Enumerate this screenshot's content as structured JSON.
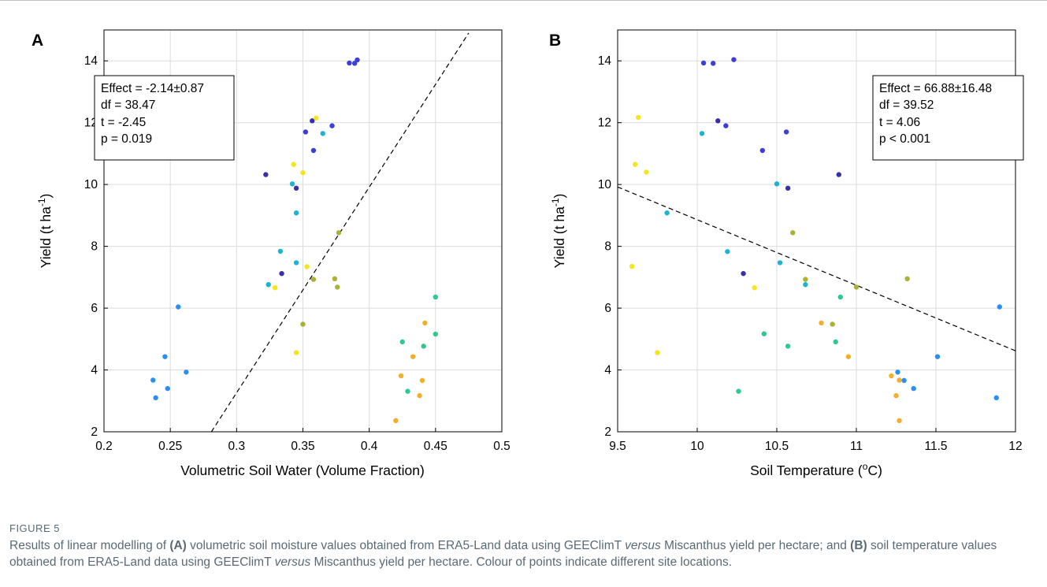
{
  "figure": {
    "label": "FIGURE 5",
    "caption": [
      {
        "t": "Results of linear modelling of ",
        "s": "n"
      },
      {
        "t": "(A)",
        "s": "b"
      },
      {
        "t": " volumetric soil moisture values obtained from ERA5-Land data using GEEClimT ",
        "s": "n"
      },
      {
        "t": "versus",
        "s": "i"
      },
      {
        "t": " Miscanthus yield per hectare; and ",
        "s": "n"
      },
      {
        "t": "(B)",
        "s": "b"
      },
      {
        "t": " soil temperature values obtained from ERA5-Land data using GEEClimT ",
        "s": "n"
      },
      {
        "t": "versus",
        "s": "i"
      },
      {
        "t": " Miscanthus yield per hectare. Colour of points indicate different site locations.",
        "s": "n"
      }
    ]
  },
  "chart_data": [
    {
      "panel": "A",
      "type": "scatter",
      "xlabel": "Volumetric Soil Water (Volume Fraction)",
      "ylabel": "Yield (t ha",
      "ylabel_sup": "-1",
      "ylabel_end": ")",
      "xlim": [
        0.2,
        0.5
      ],
      "ylim": [
        2,
        15
      ],
      "xticks": [
        0.2,
        0.25,
        0.3,
        0.35,
        0.4,
        0.45,
        0.5
      ],
      "xtick_labels": [
        "0.2",
        "0.25",
        "0.3",
        "0.35",
        "0.4",
        "0.45",
        "0.5"
      ],
      "yticks": [
        2,
        4,
        6,
        8,
        10,
        12,
        14
      ],
      "ytick_labels": [
        "2",
        "4",
        "6",
        "8",
        "10",
        "12",
        "14"
      ],
      "grid": true,
      "stats_placement": "top-left",
      "stats": [
        "Effect = -2.14±0.87",
        "df = 38.47",
        "t = -2.45",
        "p = 0.019"
      ],
      "fit_line": {
        "x": [
          0.281,
          0.475
        ],
        "y": [
          2.0,
          14.9
        ],
        "style": "dashed"
      },
      "points": [
        {
          "x": 0.237,
          "y": 3.67,
          "c": "#2b8ff0"
        },
        {
          "x": 0.239,
          "y": 3.1,
          "c": "#2b8ff0"
        },
        {
          "x": 0.246,
          "y": 4.43,
          "c": "#2b8ff0"
        },
        {
          "x": 0.248,
          "y": 3.4,
          "c": "#2b8ff0"
        },
        {
          "x": 0.256,
          "y": 6.04,
          "c": "#2b8ff0"
        },
        {
          "x": 0.262,
          "y": 3.93,
          "c": "#2b8ff0"
        },
        {
          "x": 0.322,
          "y": 10.32,
          "c": "#3b2fa8"
        },
        {
          "x": 0.324,
          "y": 6.76,
          "c": "#1cb3d4"
        },
        {
          "x": 0.329,
          "y": 6.66,
          "c": "#f4e51e"
        },
        {
          "x": 0.333,
          "y": 7.84,
          "c": "#1cb3d4"
        },
        {
          "x": 0.334,
          "y": 7.12,
          "c": "#3b2fa8"
        },
        {
          "x": 0.342,
          "y": 10.02,
          "c": "#1cb3d4"
        },
        {
          "x": 0.343,
          "y": 10.65,
          "c": "#f4e51e"
        },
        {
          "x": 0.345,
          "y": 9.88,
          "c": "#3b2fa8"
        },
        {
          "x": 0.345,
          "y": 9.08,
          "c": "#1cb3d4"
        },
        {
          "x": 0.345,
          "y": 7.47,
          "c": "#1cb3d4"
        },
        {
          "x": 0.345,
          "y": 4.56,
          "c": "#f4e51e"
        },
        {
          "x": 0.35,
          "y": 10.38,
          "c": "#f4e51e"
        },
        {
          "x": 0.35,
          "y": 5.48,
          "c": "#a8b234"
        },
        {
          "x": 0.352,
          "y": 11.7,
          "c": "#3b3fd8"
        },
        {
          "x": 0.353,
          "y": 7.34,
          "c": "#f4e51e"
        },
        {
          "x": 0.357,
          "y": 12.06,
          "c": "#3b2fa8"
        },
        {
          "x": 0.358,
          "y": 11.1,
          "c": "#3b3fd8"
        },
        {
          "x": 0.358,
          "y": 6.93,
          "c": "#a8b234"
        },
        {
          "x": 0.36,
          "y": 12.15,
          "c": "#f4e51e"
        },
        {
          "x": 0.365,
          "y": 11.65,
          "c": "#1cb3d4"
        },
        {
          "x": 0.372,
          "y": 11.9,
          "c": "#3b3fd8"
        },
        {
          "x": 0.374,
          "y": 6.95,
          "c": "#a8b234"
        },
        {
          "x": 0.376,
          "y": 6.68,
          "c": "#a8b234"
        },
        {
          "x": 0.377,
          "y": 8.44,
          "c": "#a8b234"
        },
        {
          "x": 0.385,
          "y": 13.93,
          "c": "#3b3fd8"
        },
        {
          "x": 0.389,
          "y": 13.92,
          "c": "#3b3fd8"
        },
        {
          "x": 0.391,
          "y": 14.03,
          "c": "#3b3fd8"
        },
        {
          "x": 0.42,
          "y": 2.36,
          "c": "#f5ae2c"
        },
        {
          "x": 0.424,
          "y": 3.81,
          "c": "#f5ae2c"
        },
        {
          "x": 0.425,
          "y": 4.91,
          "c": "#2ec98c"
        },
        {
          "x": 0.429,
          "y": 3.31,
          "c": "#2ec98c"
        },
        {
          "x": 0.433,
          "y": 4.43,
          "c": "#f5ae2c"
        },
        {
          "x": 0.438,
          "y": 3.17,
          "c": "#f5ae2c"
        },
        {
          "x": 0.44,
          "y": 3.66,
          "c": "#f5ae2c"
        },
        {
          "x": 0.441,
          "y": 4.77,
          "c": "#2ec98c"
        },
        {
          "x": 0.442,
          "y": 5.52,
          "c": "#f5ae2c"
        },
        {
          "x": 0.45,
          "y": 6.36,
          "c": "#2ec98c"
        },
        {
          "x": 0.45,
          "y": 5.16,
          "c": "#2ec98c"
        }
      ]
    },
    {
      "panel": "B",
      "type": "scatter",
      "xlabel": "Soil Temperature (",
      "xlabel_sup": "o",
      "xlabel_end": "C)",
      "ylabel": "Yield (t ha",
      "ylabel_sup": "-1",
      "ylabel_end": ")",
      "xlim": [
        9.5,
        12
      ],
      "ylim": [
        2,
        15
      ],
      "xticks": [
        9.5,
        10,
        10.5,
        11,
        11.5,
        12
      ],
      "xtick_labels": [
        "9.5",
        "10",
        "10.5",
        "11",
        "11.5",
        "12"
      ],
      "yticks": [
        2,
        4,
        6,
        8,
        10,
        12,
        14
      ],
      "ytick_labels": [
        "2",
        "4",
        "6",
        "8",
        "10",
        "12",
        "14"
      ],
      "grid": true,
      "stats_placement": "top-right",
      "stats": [
        "Effect = 66.88±16.48",
        "df = 39.52",
        "t = 4.06",
        "p < 0.001"
      ],
      "fit_line": {
        "x": [
          9.5,
          12.0
        ],
        "y": [
          9.92,
          4.62
        ],
        "style": "dashed"
      },
      "points": [
        {
          "x": 9.59,
          "y": 7.35,
          "c": "#f4e51e"
        },
        {
          "x": 9.61,
          "y": 10.65,
          "c": "#f4e51e"
        },
        {
          "x": 9.63,
          "y": 12.17,
          "c": "#f4e51e"
        },
        {
          "x": 9.68,
          "y": 10.4,
          "c": "#f4e51e"
        },
        {
          "x": 9.75,
          "y": 4.56,
          "c": "#f4e51e"
        },
        {
          "x": 9.81,
          "y": 9.08,
          "c": "#1cb3d4"
        },
        {
          "x": 10.03,
          "y": 11.65,
          "c": "#1cb3d4"
        },
        {
          "x": 10.04,
          "y": 13.93,
          "c": "#3b3fd8"
        },
        {
          "x": 10.1,
          "y": 13.92,
          "c": "#3b3fd8"
        },
        {
          "x": 10.13,
          "y": 12.06,
          "c": "#3b2fa8"
        },
        {
          "x": 10.18,
          "y": 11.9,
          "c": "#3b3fd8"
        },
        {
          "x": 10.19,
          "y": 7.83,
          "c": "#1cb3d4"
        },
        {
          "x": 10.23,
          "y": 14.04,
          "c": "#3b3fd8"
        },
        {
          "x": 10.26,
          "y": 3.31,
          "c": "#2ec98c"
        },
        {
          "x": 10.29,
          "y": 7.12,
          "c": "#3b2fa8"
        },
        {
          "x": 10.36,
          "y": 6.66,
          "c": "#f4e51e"
        },
        {
          "x": 10.41,
          "y": 11.1,
          "c": "#3b3fd8"
        },
        {
          "x": 10.42,
          "y": 5.17,
          "c": "#2ec98c"
        },
        {
          "x": 10.5,
          "y": 10.02,
          "c": "#1cb3d4"
        },
        {
          "x": 10.52,
          "y": 7.47,
          "c": "#1cb3d4"
        },
        {
          "x": 10.56,
          "y": 11.7,
          "c": "#3b3fd8"
        },
        {
          "x": 10.57,
          "y": 9.88,
          "c": "#3b2fa8"
        },
        {
          "x": 10.57,
          "y": 4.77,
          "c": "#2ec98c"
        },
        {
          "x": 10.6,
          "y": 8.44,
          "c": "#a8b234"
        },
        {
          "x": 10.68,
          "y": 6.93,
          "c": "#a8b234"
        },
        {
          "x": 10.68,
          "y": 6.76,
          "c": "#1cb3d4"
        },
        {
          "x": 10.78,
          "y": 5.52,
          "c": "#f5ae2c"
        },
        {
          "x": 10.85,
          "y": 5.48,
          "c": "#a8b234"
        },
        {
          "x": 10.87,
          "y": 4.91,
          "c": "#2ec98c"
        },
        {
          "x": 10.89,
          "y": 10.32,
          "c": "#3b2fa8"
        },
        {
          "x": 10.9,
          "y": 6.36,
          "c": "#2ec98c"
        },
        {
          "x": 10.95,
          "y": 4.43,
          "c": "#f5ae2c"
        },
        {
          "x": 11.0,
          "y": 6.68,
          "c": "#a8b234"
        },
        {
          "x": 11.22,
          "y": 3.81,
          "c": "#f5ae2c"
        },
        {
          "x": 11.25,
          "y": 3.17,
          "c": "#f5ae2c"
        },
        {
          "x": 11.26,
          "y": 3.93,
          "c": "#2b8ff0"
        },
        {
          "x": 11.27,
          "y": 2.36,
          "c": "#f5ae2c"
        },
        {
          "x": 11.27,
          "y": 3.67,
          "c": "#f5ae2c"
        },
        {
          "x": 11.3,
          "y": 3.66,
          "c": "#2b8ff0"
        },
        {
          "x": 11.32,
          "y": 6.95,
          "c": "#a8b234"
        },
        {
          "x": 11.36,
          "y": 3.4,
          "c": "#2b8ff0"
        },
        {
          "x": 11.51,
          "y": 4.43,
          "c": "#2b8ff0"
        },
        {
          "x": 11.88,
          "y": 3.1,
          "c": "#2b8ff0"
        },
        {
          "x": 11.9,
          "y": 6.04,
          "c": "#2b8ff0"
        }
      ]
    }
  ]
}
